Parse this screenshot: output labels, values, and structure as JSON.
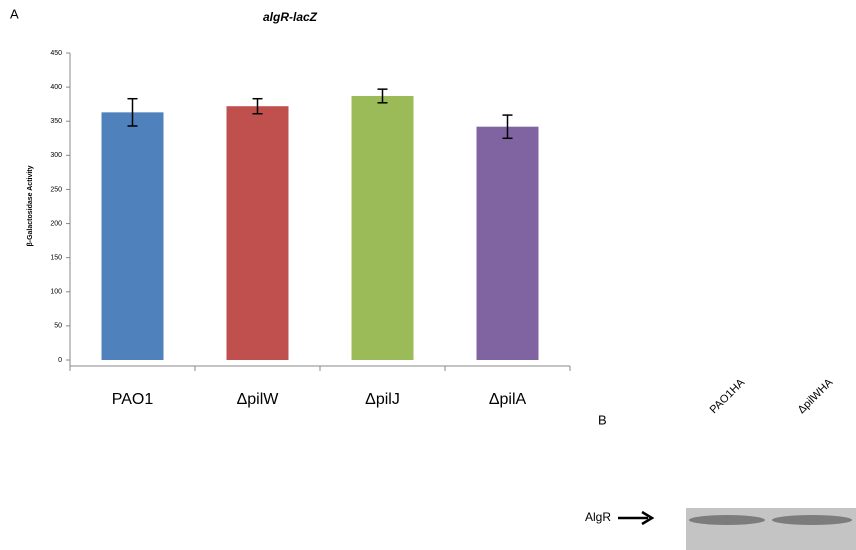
{
  "chart_data": {
    "type": "bar",
    "title": "algR-lacZ",
    "y_label": "β-Galactosidase Activity",
    "categories": [
      "PAO1",
      "ΔpilW",
      "ΔpilJ",
      "ΔpilA"
    ],
    "values": [
      363,
      372,
      387,
      342
    ],
    "errors": [
      20,
      11,
      10,
      17
    ],
    "colors": [
      "#4f81bd",
      "#c0504d",
      "#9bbb59",
      "#8064a2"
    ],
    "ylim": [
      0,
      450
    ],
    "yticks": [
      0,
      50,
      100,
      150,
      200,
      250,
      300,
      350,
      400,
      450
    ],
    "grid": false
  },
  "panel_a": {
    "label": "A"
  },
  "blot": {
    "label": "B",
    "lanes": [
      "PAO1HA",
      "ΔpilWHA"
    ],
    "band_label": "AlgR"
  }
}
